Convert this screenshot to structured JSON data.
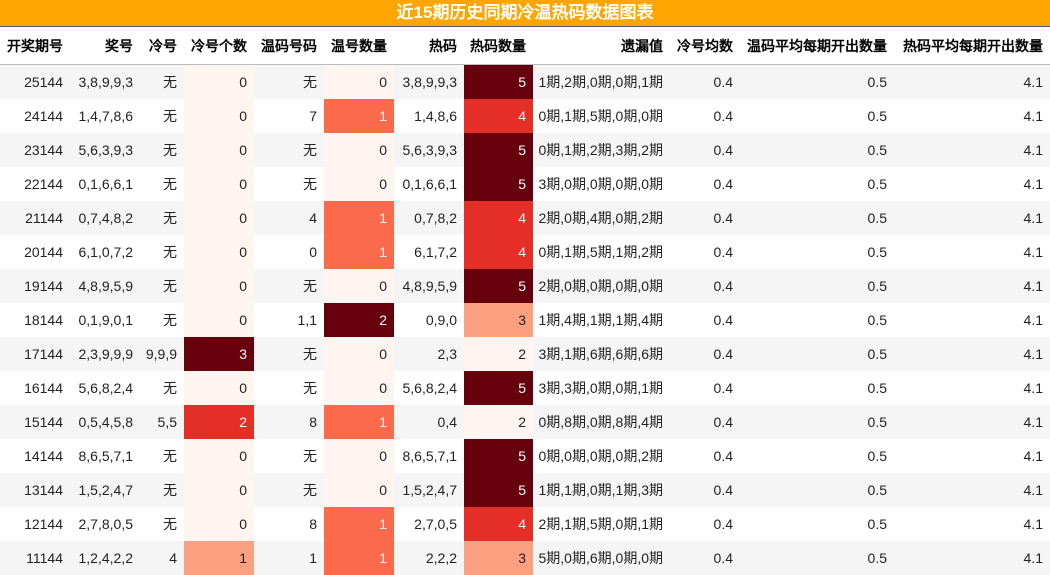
{
  "header": {
    "title": "近15期历史同期冷温热码数据图表"
  },
  "table": {
    "columns": [
      "开奖期号",
      "奖号",
      "冷号",
      "冷号个数",
      "温码号码",
      "温号数量",
      "热码",
      "热码数量",
      "遗漏值",
      "冷号均数",
      "温码平均每期开出数量",
      "热码平均每期开出数量"
    ],
    "rows": [
      [
        25144,
        "3,8,9,9,3",
        "无",
        0,
        "无",
        0,
        "3,8,9,9,3",
        5,
        "1期,2期,0期,0期,1期",
        0.4,
        0.5,
        4.1
      ],
      [
        24144,
        "1,4,7,8,6",
        "无",
        0,
        "7",
        1,
        "1,4,8,6",
        4,
        "0期,1期,5期,0期,0期",
        0.4,
        0.5,
        4.1
      ],
      [
        23144,
        "5,6,3,9,3",
        "无",
        0,
        "无",
        0,
        "5,6,3,9,3",
        5,
        "0期,1期,2期,3期,2期",
        0.4,
        0.5,
        4.1
      ],
      [
        22144,
        "0,1,6,6,1",
        "无",
        0,
        "无",
        0,
        "0,1,6,6,1",
        5,
        "3期,0期,0期,0期,0期",
        0.4,
        0.5,
        4.1
      ],
      [
        21144,
        "0,7,4,8,2",
        "无",
        0,
        "4",
        1,
        "0,7,8,2",
        4,
        "2期,0期,4期,0期,2期",
        0.4,
        0.5,
        4.1
      ],
      [
        20144,
        "6,1,0,7,2",
        "无",
        0,
        "0",
        1,
        "6,1,7,2",
        4,
        "0期,1期,5期,1期,2期",
        0.4,
        0.5,
        4.1
      ],
      [
        19144,
        "4,8,9,5,9",
        "无",
        0,
        "无",
        0,
        "4,8,9,5,9",
        5,
        "2期,0期,0期,0期,0期",
        0.4,
        0.5,
        4.1
      ],
      [
        18144,
        "0,1,9,0,1",
        "无",
        0,
        "1,1",
        2,
        "0,9,0",
        3,
        "1期,4期,1期,1期,4期",
        0.4,
        0.5,
        4.1
      ],
      [
        17144,
        "2,3,9,9,9",
        "9,9,9",
        3,
        "无",
        0,
        "2,3",
        2,
        "3期,1期,6期,6期,6期",
        0.4,
        0.5,
        4.1
      ],
      [
        16144,
        "5,6,8,2,4",
        "无",
        0,
        "无",
        0,
        "5,6,8,2,4",
        5,
        "3期,3期,0期,0期,1期",
        0.4,
        0.5,
        4.1
      ],
      [
        15144,
        "0,5,4,5,8",
        "5,5",
        2,
        "8",
        1,
        "0,4",
        2,
        "0期,8期,0期,8期,4期",
        0.4,
        0.5,
        4.1
      ],
      [
        14144,
        "8,6,5,7,1",
        "无",
        0,
        "无",
        0,
        "8,6,5,7,1",
        5,
        "0期,0期,0期,0期,2期",
        0.4,
        0.5,
        4.1
      ],
      [
        13144,
        "1,5,2,4,7",
        "无",
        0,
        "无",
        0,
        "1,5,2,4,7",
        5,
        "1期,1期,0期,1期,3期",
        0.4,
        0.5,
        4.1
      ],
      [
        12144,
        "2,7,8,0,5",
        "无",
        0,
        "8",
        1,
        "2,7,0,5",
        4,
        "2期,1期,5期,0期,1期",
        0.4,
        0.5,
        4.1
      ],
      [
        11144,
        "1,2,4,2,2",
        "4",
        1,
        "1",
        1,
        "2,2,2",
        3,
        "5期,0期,6期,0期,0期",
        0.4,
        0.5,
        4.1
      ]
    ]
  }
}
